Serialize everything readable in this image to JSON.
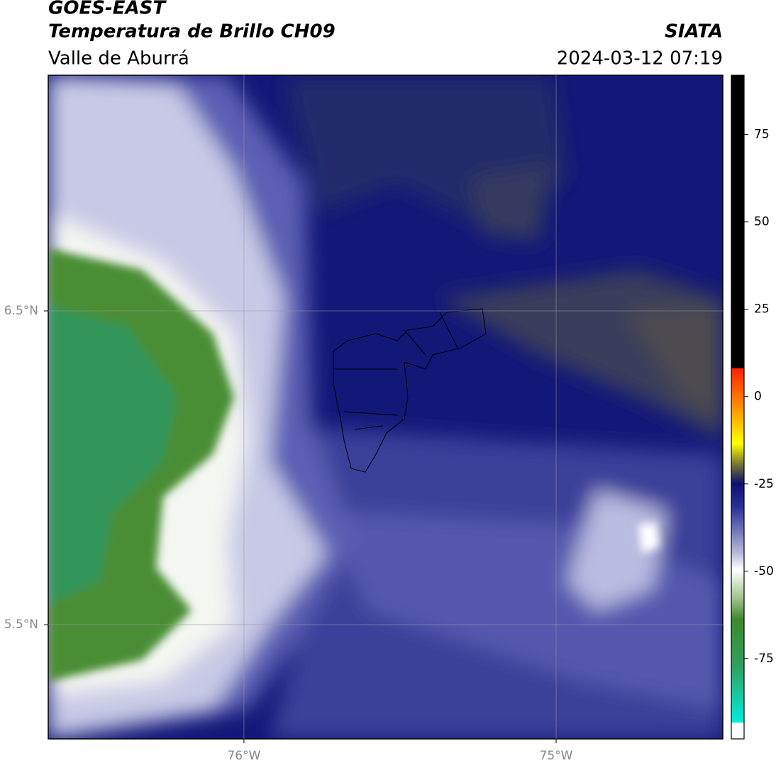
{
  "header": {
    "title": "GOES-EAST",
    "subtitle": "Temperatura de Brillo CH09",
    "region": "Valle de Aburrá",
    "source": "SIATA",
    "datetime": "2024-03-12 07:19"
  },
  "map": {
    "lonlim": [
      -76.627,
      -74.466
    ],
    "latlim": [
      5.136,
      7.251
    ],
    "lonticks": [
      {
        "value": -76,
        "label": "76°W"
      },
      {
        "value": -75,
        "label": "75°W"
      }
    ],
    "latticks": [
      {
        "value": 6.5,
        "label": "6.5°N"
      },
      {
        "value": 5.5,
        "label": "5.5°N"
      }
    ]
  },
  "colorbar": {
    "lim": [
      -98,
      92
    ],
    "ticks": [
      75,
      50,
      25,
      0,
      -25,
      -50,
      -75
    ]
  }
}
